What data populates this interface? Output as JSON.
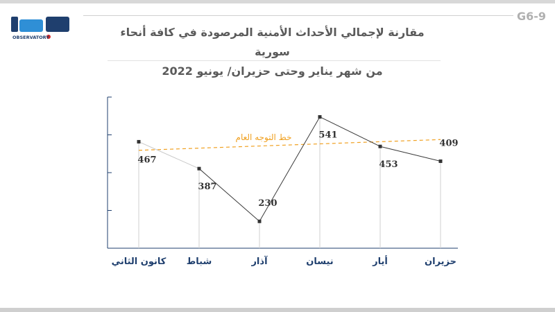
{
  "header": {
    "code": "G6-9",
    "title_line1": "مقارنة لإجمالي الأحداث الأمنية المرصودة في كافة أنحاء سورية",
    "title_line2": "من شهر يناير وحتى حزيران/ يونيو 2022"
  },
  "logo": {
    "name": "مرصد",
    "subtitle": "OBSERVATORY",
    "colors": {
      "dark": "#1f3f6e",
      "accent": "#2f8fd6",
      "red": "#d62828"
    }
  },
  "chart_data": {
    "type": "line",
    "categories": [
      "كانون الثاني",
      "شباط",
      "آذار",
      "نيسان",
      "أيار",
      "حزيران"
    ],
    "series": [
      {
        "values": [
          467,
          387,
          230,
          541,
          453,
          409
        ]
      }
    ],
    "trendline": {
      "label": "خط التوجه العام",
      "start": 441.5,
      "end": 473.5
    },
    "ylim": [
      150,
      600
    ],
    "grid": false,
    "colors": {
      "line": "#3a3a3a",
      "first_segment": "#c8c8c8",
      "marker": "#333333",
      "trend": "#f0a020",
      "category_label": "#1f3f6e",
      "value_label": "#333333",
      "axis": "#1f3f6e",
      "drop_line": "#cfcfcf"
    }
  }
}
